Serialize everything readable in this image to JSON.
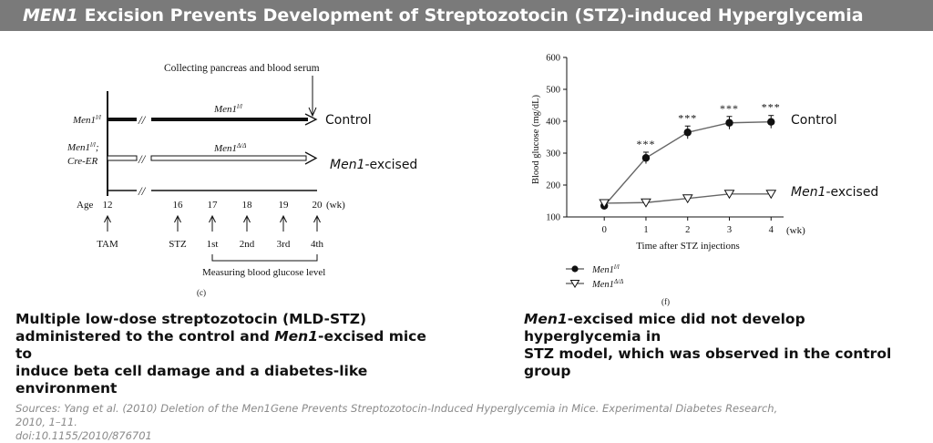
{
  "header": {
    "title_gene": "MEN1",
    "title_rest": " Excision Prevents Development of Streptozotocin (STZ)-induced Hyperglycemia"
  },
  "panel_c": {
    "collecting_label": "Collecting pancreas and blood serum",
    "row1_label": "Men1",
    "row1_sup": "l/l",
    "row2_label_a": "Men1",
    "row2_label_a_sup": "l/l",
    "row2_label_a_end": ";",
    "row2_label_b": "Cre-ER",
    "bar1_label": "Men1",
    "bar1_sup": "l/l",
    "bar2_label": "Men1",
    "bar2_sup": "Δ/Δ",
    "control_label": "Control",
    "excised_gene": "Men1",
    "excised_rest": "-excised",
    "age_label": "Age",
    "ages": [
      "12",
      "16",
      "17",
      "18",
      "19",
      "20"
    ],
    "age_unit": "(wk)",
    "events": [
      "TAM",
      "STZ",
      "1st",
      "2nd",
      "3rd",
      "4th"
    ],
    "measuring_label": "Measuring blood glucose level",
    "panel_letter": "(c)"
  },
  "chart_data": {
    "type": "line",
    "ylabel": "Blood glucose  (mg/dL)",
    "xlabel": "Time after STZ injections",
    "x_unit": "(wk)",
    "x": [
      0,
      1,
      2,
      3,
      4
    ],
    "ylim": [
      100,
      600
    ],
    "yticks": [
      100,
      200,
      300,
      400,
      500,
      600
    ],
    "series": [
      {
        "name": "Men1 l/l",
        "legend_base": "Men1",
        "legend_sup": "l/l",
        "marker": "filled-circle",
        "values": [
          135,
          285,
          365,
          395,
          398
        ],
        "errors": [
          0,
          18,
          20,
          20,
          20
        ],
        "significance": [
          "",
          "***",
          "***",
          "***",
          "***"
        ],
        "annotation": "Control"
      },
      {
        "name": "Men1 Δ/Δ",
        "legend_base": "Men1",
        "legend_sup": "Δ/Δ",
        "marker": "open-triangle",
        "values": [
          143,
          145,
          158,
          172,
          172
        ],
        "errors": [
          0,
          0,
          0,
          0,
          0
        ],
        "significance": [
          "",
          "",
          "",
          "",
          ""
        ],
        "annotation_gene": "Men1",
        "annotation_rest": "-excised"
      }
    ],
    "panel_letter": "(f)"
  },
  "captions": {
    "left": [
      "Multiple low-dose streptozotocin (MLD-STZ)",
      "administered to the control and ",
      "Men1",
      "-excised mice to",
      "induce beta cell damage and a diabetes-like",
      "environment"
    ],
    "right_gene": "Men1",
    "right_line1_rest": "-excised mice did not develop hyperglycemia in",
    "right_line2": "STZ model, which was observed in the control group"
  },
  "sources": {
    "line1": "Sources: Yang et al. (2010) Deletion of the Men1Gene Prevents Streptozotocin-Induced Hyperglycemia in Mice. Experimental Diabetes Research, 2010, 1–11.",
    "line2": "doi:10.1155/2010/876701"
  },
  "colors": {
    "title_bar": "#7a7a7a",
    "ink": "#111111",
    "sources": "#8a8a8a"
  }
}
